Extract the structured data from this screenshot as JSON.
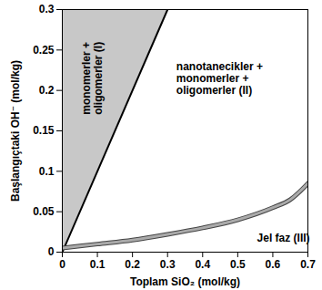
{
  "chart_data": {
    "type": "line",
    "x_label": "Toplam SiO₂ (mol/kg)",
    "y_label": "Başlangıçtaki OH⁻ (mol/kg)",
    "xlim": [
      0,
      0.7
    ],
    "ylim": [
      0,
      0.3
    ],
    "xticks": [
      0,
      0.1,
      0.2,
      0.3,
      0.4,
      0.5,
      0.6,
      0.7
    ],
    "yticks": [
      0,
      0.05,
      0.1,
      0.15,
      0.2,
      0.25,
      0.3
    ],
    "grid": false,
    "series": [
      {
        "color": "#000000",
        "x": [
          0,
          0.3
        ],
        "values": [
          0,
          0.3
        ]
      },
      {
        "color": "#aaaaaa",
        "x": [
          0,
          0.1,
          0.2,
          0.3,
          0.4,
          0.5,
          0.6,
          0.65,
          0.7
        ],
        "values": [
          0.005,
          0.01,
          0.015,
          0.022,
          0.03,
          0.04,
          0.055,
          0.065,
          0.085
        ]
      }
    ],
    "annotations": [
      "monomerler +\noligomerler (I)",
      "nanotanecikler +\nmonomerler +\noligomerler (II)",
      "Jel faz (III)"
    ]
  }
}
